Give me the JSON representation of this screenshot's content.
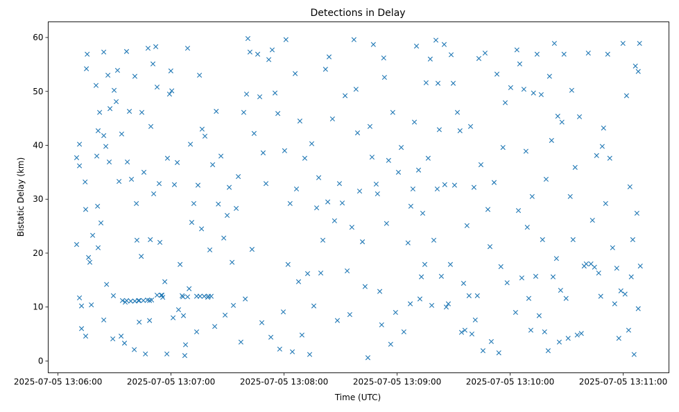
{
  "chart_data": {
    "type": "scatter",
    "title": "Detections in Delay",
    "xlabel": "Time (UTC)",
    "ylabel": "Bistatic Delay (km)",
    "x_units": "seconds after 2025-07-05 13:06:00 UTC",
    "xlim": [
      -5.2,
      324.3
    ],
    "ylim": [
      -2.2,
      62.9
    ],
    "grid": false,
    "marker": "x",
    "color": "#1f77b4",
    "x_ticks": [
      {
        "value": 0,
        "label": "2025-07-05 13:06:00"
      },
      {
        "value": 60,
        "label": "2025-07-05 13:07:00"
      },
      {
        "value": 120,
        "label": "2025-07-05 13:08:00"
      },
      {
        "value": 180,
        "label": "2025-07-05 13:09:00"
      },
      {
        "value": 240,
        "label": "2025-07-05 13:10:00"
      },
      {
        "value": 300,
        "label": "2025-07-05 13:11:00"
      }
    ],
    "y_ticks": [
      {
        "value": 0,
        "label": "0"
      },
      {
        "value": 10,
        "label": "10"
      },
      {
        "value": 20,
        "label": "20"
      },
      {
        "value": 30,
        "label": "30"
      },
      {
        "value": 40,
        "label": "40"
      },
      {
        "value": 50,
        "label": "50"
      },
      {
        "value": 60,
        "label": "60"
      }
    ],
    "points": [
      [
        9.9,
        37.7
      ],
      [
        11.4,
        40.2
      ],
      [
        11.4,
        36.2
      ],
      [
        9.9,
        21.6
      ],
      [
        11.4,
        11.7
      ],
      [
        12.5,
        10.2
      ],
      [
        12.5,
        6.0
      ],
      [
        14.7,
        4.6
      ],
      [
        14.4,
        33.2
      ],
      [
        14.7,
        28.1
      ],
      [
        15.1,
        54.2
      ],
      [
        15.5,
        56.9
      ],
      [
        16.2,
        19.2
      ],
      [
        16.9,
        18.3
      ],
      [
        17.7,
        10.4
      ],
      [
        18.4,
        23.3
      ],
      [
        20.2,
        51.1
      ],
      [
        20.6,
        38.0
      ],
      [
        21.0,
        28.7
      ],
      [
        21.3,
        21.0
      ],
      [
        21.3,
        42.7
      ],
      [
        22.1,
        46.1
      ],
      [
        22.8,
        25.6
      ],
      [
        24.3,
        57.3
      ],
      [
        24.3,
        41.8
      ],
      [
        24.3,
        7.6
      ],
      [
        25.4,
        39.8
      ],
      [
        25.8,
        14.2
      ],
      [
        26.5,
        53.0
      ],
      [
        27.2,
        36.9
      ],
      [
        27.6,
        46.8
      ],
      [
        29.1,
        4.1
      ],
      [
        29.4,
        12.1
      ],
      [
        29.8,
        50.2
      ],
      [
        30.9,
        48.1
      ],
      [
        31.6,
        53.9
      ],
      [
        32.4,
        33.3
      ],
      [
        33.5,
        4.6
      ],
      [
        33.8,
        42.1
      ],
      [
        35.3,
        3.3
      ],
      [
        35.7,
        10.9
      ],
      [
        36.4,
        57.4
      ],
      [
        36.8,
        36.9
      ],
      [
        37.9,
        46.3
      ],
      [
        39.0,
        33.7
      ],
      [
        40.5,
        2.1
      ],
      [
        40.8,
        52.8
      ],
      [
        41.6,
        29.2
      ],
      [
        41.9,
        22.4
      ],
      [
        42.7,
        11.2
      ],
      [
        43.1,
        7.2
      ],
      [
        44.2,
        19.4
      ],
      [
        44.5,
        46.1
      ],
      [
        45.6,
        35.0
      ],
      [
        46.4,
        1.3
      ],
      [
        47.8,
        58.0
      ],
      [
        48.6,
        7.5
      ],
      [
        48.6,
        11.2
      ],
      [
        49.0,
        22.5
      ],
      [
        49.3,
        43.5
      ],
      [
        50.4,
        55.1
      ],
      [
        50.8,
        31.0
      ],
      [
        51.9,
        58.3
      ],
      [
        52.6,
        50.8
      ],
      [
        53.7,
        32.9
      ],
      [
        54.1,
        22.0
      ],
      [
        54.8,
        12.2
      ],
      [
        55.6,
        11.8
      ],
      [
        56.7,
        14.7
      ],
      [
        57.8,
        1.3
      ],
      [
        58.1,
        37.6
      ],
      [
        59.2,
        49.5
      ],
      [
        59.9,
        53.8
      ],
      [
        60.4,
        50.1
      ],
      [
        61.1,
        8.0
      ],
      [
        61.8,
        32.7
      ],
      [
        63.3,
        36.8
      ],
      [
        64.0,
        9.5
      ],
      [
        64.8,
        17.9
      ],
      [
        65.9,
        12.1
      ],
      [
        66.6,
        8.4
      ],
      [
        67.3,
        1.0
      ],
      [
        67.7,
        3.0
      ],
      [
        68.8,
        58.0
      ],
      [
        69.6,
        13.4
      ],
      [
        70.3,
        40.2
      ],
      [
        71.0,
        25.7
      ],
      [
        72.1,
        29.2
      ],
      [
        73.6,
        5.4
      ],
      [
        74.3,
        32.6
      ],
      [
        75.1,
        53.0
      ],
      [
        76.2,
        24.5
      ],
      [
        76.5,
        43.0
      ],
      [
        78.0,
        41.7
      ],
      [
        79.5,
        11.8
      ],
      [
        80.6,
        20.6
      ],
      [
        82.1,
        36.4
      ],
      [
        83.2,
        6.4
      ],
      [
        84.0,
        46.3
      ],
      [
        85.1,
        29.1
      ],
      [
        86.5,
        38.0
      ],
      [
        88.0,
        22.8
      ],
      [
        88.7,
        8.5
      ],
      [
        89.8,
        27.0
      ],
      [
        90.9,
        32.2
      ],
      [
        92.4,
        18.3
      ],
      [
        93.1,
        10.3
      ],
      [
        94.6,
        28.3
      ],
      [
        95.7,
        34.2
      ],
      [
        97.1,
        3.5
      ],
      [
        98.6,
        46.1
      ],
      [
        99.4,
        11.5
      ],
      [
        100.1,
        49.5
      ],
      [
        100.8,
        59.8
      ],
      [
        101.9,
        57.3
      ],
      [
        103.0,
        20.7
      ],
      [
        104.1,
        42.2
      ],
      [
        106.0,
        56.9
      ],
      [
        107.1,
        49.0
      ],
      [
        108.2,
        7.1
      ],
      [
        108.9,
        38.6
      ],
      [
        110.4,
        32.9
      ],
      [
        111.9,
        55.9
      ],
      [
        113.0,
        4.4
      ],
      [
        113.7,
        57.7
      ],
      [
        115.2,
        49.7
      ],
      [
        116.7,
        45.9
      ],
      [
        117.7,
        2.2
      ],
      [
        119.6,
        9.1
      ],
      [
        120.3,
        39.0
      ],
      [
        121.0,
        59.6
      ],
      [
        122.1,
        17.9
      ],
      [
        123.2,
        29.2
      ],
      [
        124.4,
        1.7
      ],
      [
        125.9,
        53.3
      ],
      [
        126.6,
        31.9
      ],
      [
        127.7,
        14.7
      ],
      [
        128.4,
        44.5
      ],
      [
        129.5,
        4.8
      ],
      [
        131.0,
        37.6
      ],
      [
        132.5,
        16.2
      ],
      [
        133.6,
        1.2
      ],
      [
        134.7,
        40.3
      ],
      [
        135.8,
        10.2
      ],
      [
        137.3,
        28.4
      ],
      [
        138.4,
        34.0
      ],
      [
        139.5,
        16.3
      ],
      [
        140.6,
        22.4
      ],
      [
        142.0,
        54.1
      ],
      [
        143.2,
        29.5
      ],
      [
        143.9,
        56.4
      ],
      [
        145.7,
        44.9
      ],
      [
        146.8,
        26.0
      ],
      [
        148.3,
        7.5
      ],
      [
        149.4,
        32.9
      ],
      [
        150.9,
        29.3
      ],
      [
        152.4,
        49.2
      ],
      [
        153.5,
        16.7
      ],
      [
        154.9,
        8.6
      ],
      [
        156.0,
        24.8
      ],
      [
        157.1,
        59.6
      ],
      [
        158.2,
        50.4
      ],
      [
        159.0,
        42.3
      ],
      [
        160.1,
        31.5
      ],
      [
        161.6,
        22.1
      ],
      [
        163.0,
        13.8
      ],
      [
        164.5,
        0.6
      ],
      [
        165.6,
        43.5
      ],
      [
        166.7,
        37.8
      ],
      [
        167.4,
        58.7
      ],
      [
        168.9,
        32.8
      ],
      [
        169.6,
        31.0
      ],
      [
        170.8,
        12.9
      ],
      [
        171.8,
        6.7
      ],
      [
        172.9,
        56.2
      ],
      [
        173.3,
        52.6
      ],
      [
        174.4,
        25.5
      ],
      [
        175.5,
        37.2
      ],
      [
        176.6,
        3.1
      ],
      [
        177.7,
        46.1
      ],
      [
        179.2,
        9.0
      ],
      [
        180.7,
        35.0
      ],
      [
        182.2,
        39.6
      ],
      [
        183.6,
        5.4
      ],
      [
        185.8,
        21.9
      ],
      [
        187.0,
        10.6
      ],
      [
        187.3,
        28.7
      ],
      [
        188.4,
        31.9
      ],
      [
        189.2,
        44.3
      ],
      [
        190.3,
        58.4
      ],
      [
        191.4,
        35.4
      ],
      [
        192.1,
        11.5
      ],
      [
        192.9,
        15.6
      ],
      [
        193.6,
        27.4
      ],
      [
        194.7,
        17.9
      ],
      [
        195.4,
        51.6
      ],
      [
        196.5,
        37.6
      ],
      [
        197.6,
        56.0
      ],
      [
        198.4,
        10.3
      ],
      [
        199.5,
        22.4
      ],
      [
        200.6,
        59.5
      ],
      [
        201.3,
        31.9
      ],
      [
        201.7,
        51.5
      ],
      [
        202.4,
        42.9
      ],
      [
        203.5,
        15.7
      ],
      [
        205.0,
        58.7
      ],
      [
        205.3,
        32.7
      ],
      [
        206.1,
        10.0
      ],
      [
        207.2,
        10.6
      ],
      [
        208.3,
        17.9
      ],
      [
        208.7,
        56.8
      ],
      [
        209.8,
        51.5
      ],
      [
        210.5,
        32.6
      ],
      [
        212.0,
        46.1
      ],
      [
        213.4,
        42.7
      ],
      [
        214.2,
        5.3
      ],
      [
        215.3,
        14.4
      ],
      [
        216.0,
        5.7
      ],
      [
        217.1,
        25.1
      ],
      [
        218.2,
        12.1
      ],
      [
        219.0,
        43.5
      ],
      [
        219.7,
        5.0
      ],
      [
        220.8,
        32.2
      ],
      [
        221.5,
        7.6
      ],
      [
        222.6,
        12.1
      ],
      [
        223.4,
        56.1
      ],
      [
        224.5,
        36.4
      ],
      [
        225.6,
        1.9
      ],
      [
        226.7,
        57.1
      ],
      [
        228.2,
        28.1
      ],
      [
        229.3,
        21.2
      ],
      [
        230.0,
        3.6
      ],
      [
        231.5,
        33.1
      ],
      [
        233.0,
        53.2
      ],
      [
        234.0,
        1.5
      ],
      [
        235.1,
        17.5
      ],
      [
        236.2,
        39.6
      ],
      [
        237.4,
        47.9
      ],
      [
        238.4,
        14.5
      ],
      [
        240.3,
        50.7
      ],
      [
        242.9,
        9.0
      ],
      [
        243.6,
        57.7
      ],
      [
        244.4,
        27.9
      ],
      [
        245.1,
        55.1
      ],
      [
        246.2,
        15.4
      ],
      [
        247.3,
        50.4
      ],
      [
        248.4,
        38.9
      ],
      [
        249.1,
        24.8
      ],
      [
        249.9,
        11.6
      ],
      [
        251.0,
        5.7
      ],
      [
        251.7,
        30.5
      ],
      [
        252.4,
        49.7
      ],
      [
        253.6,
        15.7
      ],
      [
        254.3,
        56.9
      ],
      [
        255.4,
        8.4
      ],
      [
        256.5,
        49.4
      ],
      [
        257.2,
        22.5
      ],
      [
        258.3,
        5.4
      ],
      [
        259.1,
        33.7
      ],
      [
        260.2,
        1.9
      ],
      [
        260.9,
        52.8
      ],
      [
        262.0,
        40.9
      ],
      [
        262.8,
        15.6
      ],
      [
        263.5,
        58.9
      ],
      [
        264.6,
        19.0
      ],
      [
        265.3,
        45.4
      ],
      [
        266.1,
        3.5
      ],
      [
        266.8,
        13.1
      ],
      [
        267.5,
        44.3
      ],
      [
        268.6,
        56.9
      ],
      [
        269.7,
        11.6
      ],
      [
        270.8,
        4.2
      ],
      [
        271.9,
        30.5
      ],
      [
        272.7,
        50.2
      ],
      [
        273.4,
        22.5
      ],
      [
        274.5,
        35.9
      ],
      [
        275.6,
        4.8
      ],
      [
        276.8,
        45.3
      ],
      [
        277.8,
        5.1
      ],
      [
        279.3,
        17.6
      ],
      [
        280.4,
        18.0
      ],
      [
        281.5,
        57.1
      ],
      [
        282.9,
        18.0
      ],
      [
        283.7,
        26.1
      ],
      [
        284.8,
        17.4
      ],
      [
        285.9,
        38.1
      ],
      [
        287.0,
        16.3
      ],
      [
        288.1,
        12.0
      ],
      [
        288.9,
        39.8
      ],
      [
        289.6,
        43.2
      ],
      [
        290.7,
        29.2
      ],
      [
        291.8,
        56.9
      ],
      [
        292.9,
        37.6
      ],
      [
        294.4,
        21.0
      ],
      [
        295.5,
        10.6
      ],
      [
        296.6,
        17.2
      ],
      [
        297.7,
        4.2
      ],
      [
        298.8,
        13.0
      ],
      [
        299.9,
        58.9
      ],
      [
        301.0,
        12.4
      ],
      [
        301.8,
        49.2
      ],
      [
        302.9,
        5.7
      ],
      [
        303.6,
        32.3
      ],
      [
        304.3,
        15.6
      ],
      [
        305.1,
        22.5
      ],
      [
        305.8,
        1.2
      ],
      [
        306.5,
        54.7
      ],
      [
        307.3,
        27.4
      ],
      [
        308.0,
        9.7
      ],
      [
        308.7,
        58.9
      ],
      [
        309.1,
        17.6
      ],
      [
        308.0,
        53.7
      ],
      [
        34.2,
        11.2
      ],
      [
        36.4,
        11.2
      ],
      [
        38.6,
        11.1
      ],
      [
        40.8,
        11.1
      ],
      [
        43.1,
        11.2
      ],
      [
        45.3,
        11.2
      ],
      [
        47.5,
        11.3
      ],
      [
        49.7,
        11.3
      ],
      [
        52.6,
        12.2
      ],
      [
        55.2,
        12.2
      ],
      [
        66.3,
        11.9
      ],
      [
        68.8,
        11.9
      ],
      [
        73.6,
        12.0
      ],
      [
        75.4,
        12.0
      ],
      [
        77.6,
        12.0
      ],
      [
        79.9,
        12.0
      ],
      [
        81.3,
        12.0
      ]
    ]
  }
}
